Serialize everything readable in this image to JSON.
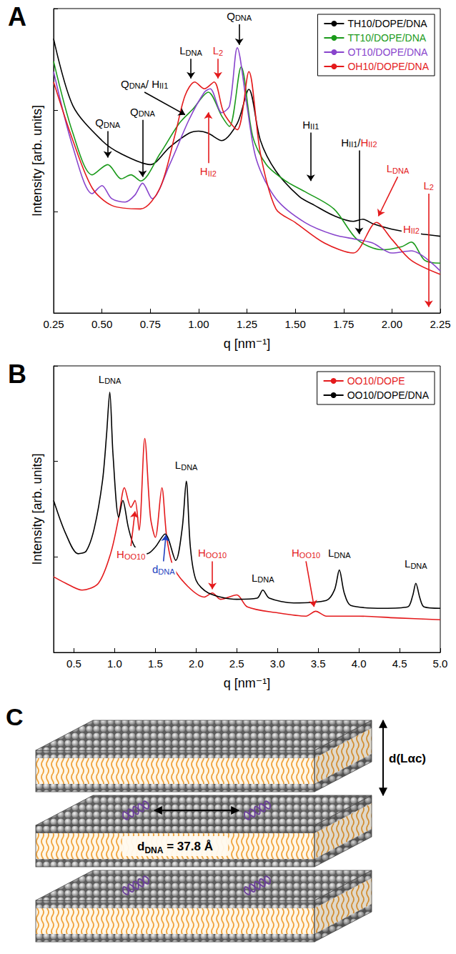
{
  "chart_data": [
    {
      "type": "line",
      "title": "A",
      "x_label": "q [nm⁻¹]",
      "y_label": "Intensity [arb. units]",
      "log": "y",
      "grid": false,
      "tick_labels": "x",
      "legend": "top-right",
      "xlim": [
        0.25,
        2.25
      ],
      "xticks": [
        0.25,
        {
          "value": 0.5,
          "label": "0.50"
        },
        0.75,
        {
          "value": 1,
          "label": "1.00"
        },
        1.25,
        {
          "value": 1.5,
          "label": "1.50"
        },
        1.75,
        {
          "value": 2,
          "label": "2.00"
        },
        2.25
      ],
      "ylim": [
        1,
        1000
      ],
      "yticks": [
        1,
        10,
        100,
        1000
      ],
      "series": [
        {
          "name": "TH10/DOPE/DNA",
          "color": "#000000",
          "x": [
            0.25,
            0.35,
            0.5,
            0.6,
            0.75,
            0.85,
            0.95,
            1.0,
            1.05,
            1.12,
            1.2,
            1.26,
            1.32,
            1.4,
            1.52,
            1.6,
            1.7,
            1.8,
            1.85,
            1.9,
            2.0,
            2.1,
            2.25
          ],
          "values": [
            505,
            110,
            50,
            37,
            29,
            43,
            59,
            62,
            59,
            50,
            74,
            160,
            50,
            25,
            14.1,
            11.5,
            9.1,
            8.0,
            8.4,
            7.6,
            6.7,
            6.2,
            5.7
          ]
        },
        {
          "name": "TT10/DOPE/DNA",
          "color": "#1a9a1a",
          "x": [
            0.25,
            0.35,
            0.45,
            0.53,
            0.6,
            0.65,
            0.7,
            0.8,
            0.9,
            0.97,
            1.05,
            1.12,
            1.16,
            1.22,
            1.28,
            1.35,
            1.45,
            1.55,
            1.7,
            1.82,
            1.95,
            2.05,
            2.1,
            2.17,
            2.25
          ],
          "values": [
            302,
            59,
            23,
            29,
            21,
            23,
            20,
            37,
            74,
            102,
            150,
            87,
            69,
            267,
            55,
            29,
            20,
            15.7,
            10.6,
            5.3,
            4.2,
            4.5,
            5.0,
            3.3,
            3.1
          ]
        },
        {
          "name": "OT10/DOPE/DNA",
          "color": "#8844cc",
          "x": [
            0.25,
            0.35,
            0.45,
            0.5,
            0.55,
            0.62,
            0.67,
            0.71,
            0.76,
            0.85,
            0.95,
            1.03,
            1.06,
            1.12,
            1.16,
            1.2,
            1.25,
            1.3,
            1.4,
            1.55,
            1.7,
            1.82,
            1.9,
            2.0,
            2.1,
            2.25
          ],
          "values": [
            239,
            43,
            15,
            18,
            13.4,
            12.4,
            14.5,
            19,
            13.4,
            29,
            80,
            150,
            162,
            94,
            110,
            412,
            110,
            32,
            13.4,
            7.8,
            5.9,
            5.3,
            4.9,
            3.9,
            4.1,
            2.6
          ]
        },
        {
          "name": "OH10/DOPE/DNA",
          "color": "#e41a1c",
          "x": [
            0.25,
            0.35,
            0.45,
            0.55,
            0.7,
            0.8,
            0.88,
            0.93,
            0.98,
            1.03,
            1.08,
            1.13,
            1.2,
            1.26,
            1.32,
            1.4,
            1.5,
            1.65,
            1.8,
            1.92,
            2.0,
            2.1,
            2.25
          ],
          "values": [
            189,
            50,
            17,
            11.5,
            10.6,
            17,
            59,
            139,
            189,
            162,
            189,
            94,
            64,
            239,
            37,
            10.6,
            7.8,
            4.9,
            3.9,
            7.8,
            5.3,
            3.3,
            2.4
          ]
        }
      ],
      "annotations": [
        {
          "text": "QDNA",
          "color": "#000000",
          "at": [
            0.53,
            34
          ],
          "from": [
            0.53,
            62
          ]
        },
        {
          "text": "QDNA",
          "color": "#000000",
          "at": [
            0.71,
            22
          ],
          "from": [
            0.71,
            80
          ]
        },
        {
          "text": "QDNA/ HII1",
          "color": "#000000",
          "at": [
            0.93,
            90
          ],
          "from": [
            0.72,
            150
          ]
        },
        {
          "text": "LDNA",
          "color": "#000000",
          "at": [
            0.96,
            205
          ],
          "from": [
            0.96,
            320
          ]
        },
        {
          "text": "L2",
          "color": "#e41a1c",
          "at": [
            1.1,
            205
          ],
          "from": [
            1.1,
            320
          ]
        },
        {
          "text": "QDNA",
          "color": "#000000",
          "at": [
            1.21,
            440
          ],
          "from": [
            1.21,
            700
          ]
        },
        {
          "text": "HII2",
          "color": "#e41a1c",
          "at": [
            1.05,
            95
          ],
          "from": [
            1.05,
            30
          ]
        },
        {
          "text": "HII1",
          "color": "#000000",
          "at": [
            1.58,
            20
          ],
          "from": [
            1.58,
            60
          ]
        },
        {
          "parts": [
            {
              "text": "HII1/",
              "color": "#000000"
            },
            {
              "text": "HII2",
              "color": "#e41a1c"
            }
          ],
          "at": [
            1.83,
            6
          ],
          "from": [
            1.83,
            40
          ]
        },
        {
          "text": "LDNA",
          "color": "#e41a1c",
          "at": [
            1.93,
            9
          ],
          "from": [
            2.03,
            22
          ]
        },
        {
          "text": "HII2",
          "color": "#e41a1c",
          "at": [
            2.1,
            5.6
          ]
        },
        {
          "text": "L2",
          "color": "#e41a1c",
          "at": [
            2.19,
            1.15
          ],
          "from": [
            2.19,
            15
          ]
        }
      ]
    },
    {
      "type": "line",
      "title": "B",
      "x_label": "q [nm⁻¹]",
      "y_label": "Intensity [arb. units]",
      "log": "y",
      "grid": false,
      "tick_labels": "x",
      "legend": "top-right",
      "xlim": [
        0.25,
        5.0
      ],
      "xticks": [
        0.5,
        {
          "value": 1,
          "label": "1.0"
        },
        1.5,
        {
          "value": 2,
          "label": "2.0"
        },
        2.5,
        {
          "value": 3,
          "label": "3.0"
        },
        3.5,
        {
          "value": 4,
          "label": "4.0"
        },
        4.5,
        {
          "value": 5,
          "label": "5.0"
        }
      ],
      "ylim": [
        1,
        1000
      ],
      "yticks": [
        1,
        10,
        100,
        1000
      ],
      "series": [
        {
          "name": "OO10/DOPE",
          "color": "#e41a1c",
          "x": [
            0.25,
            0.4,
            0.6,
            0.8,
            0.95,
            1.05,
            1.12,
            1.2,
            1.25,
            1.3,
            1.37,
            1.44,
            1.5,
            1.58,
            1.64,
            1.72,
            1.9,
            2.1,
            2.2,
            2.3,
            2.5,
            2.63,
            3.0,
            3.35,
            3.47,
            3.6,
            4.0,
            4.45,
            5.0
          ],
          "values": [
            6.2,
            5.3,
            4.5,
            5.3,
            10.8,
            26,
            53,
            33,
            39,
            19,
            174,
            26,
            16,
            53,
            16,
            7.9,
            4.9,
            3.8,
            4.2,
            3.6,
            4.0,
            3.0,
            2.6,
            2.4,
            2.7,
            2.4,
            2.4,
            2.3,
            2.2
          ]
        },
        {
          "name": "OO10/DOPE/DNA",
          "color": "#000000",
          "x": [
            0.25,
            0.4,
            0.55,
            0.65,
            0.75,
            0.85,
            0.9,
            0.94,
            0.98,
            1.05,
            1.1,
            1.17,
            1.25,
            1.4,
            1.5,
            1.62,
            1.75,
            1.83,
            1.88,
            1.93,
            2.0,
            2.15,
            2.5,
            2.75,
            2.82,
            2.9,
            3.2,
            3.6,
            3.7,
            3.76,
            3.82,
            3.9,
            4.3,
            4.6,
            4.66,
            4.7,
            4.75,
            4.8,
            5.0
          ],
          "values": [
            39,
            17.4,
            10.8,
            11.5,
            20,
            62,
            188,
            530,
            117,
            26,
            39,
            20,
            12.7,
            10.8,
            12.7,
            17.4,
            9.2,
            20,
            62,
            12.7,
            5.7,
            4.2,
            3.6,
            3.7,
            4.5,
            3.7,
            3.3,
            3.5,
            4.5,
            7.3,
            4.2,
            3.1,
            2.9,
            3.0,
            3.9,
            5.3,
            3.7,
            3.0,
            2.9
          ]
        }
      ],
      "annotations": [
        {
          "text": "LDNA",
          "color": "#000000",
          "at": [
            0.94,
            600
          ]
        },
        {
          "text": "LDNA",
          "color": "#000000",
          "at": [
            1.88,
            75
          ]
        },
        {
          "text": "LDNA",
          "color": "#000000",
          "at": [
            2.82,
            5.0
          ]
        },
        {
          "text": "LDNA",
          "color": "#000000",
          "at": [
            3.76,
            9.0
          ]
        },
        {
          "text": "LDNA",
          "color": "#000000",
          "at": [
            4.7,
            7.0
          ]
        },
        {
          "text": "HOO10",
          "color": "#e41a1c",
          "at": [
            1.25,
            30
          ],
          "from": [
            1.2,
            13
          ]
        },
        {
          "text": "dDNA",
          "color": "#1f3fbf",
          "at": [
            1.63,
            17
          ],
          "from": [
            1.6,
            9
          ]
        },
        {
          "text": "HOO10",
          "color": "#e41a1c",
          "at": [
            2.2,
            4.6
          ],
          "from": [
            2.2,
            9
          ]
        },
        {
          "text": "HOO10",
          "color": "#e41a1c",
          "at": [
            3.45,
            3.0
          ],
          "from": [
            3.35,
            9
          ]
        }
      ]
    }
  ],
  "diagram": {
    "panel": "C",
    "period_label": "d(Lαc)",
    "spacing_label": "dDNA = 37.8 Å"
  }
}
